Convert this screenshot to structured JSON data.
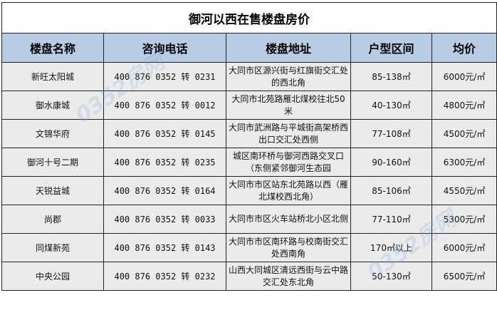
{
  "title": "御河以西在售楼盘房价",
  "headers": [
    "楼盘名称",
    "咨询电话",
    "楼盘地址",
    "户型区间",
    "均价"
  ],
  "rows": [
    {
      "name": "新旺太阳城",
      "phone": "400 876 0352 转 0231",
      "address": "大同市区源兴街与红旗街交汇处的西北角",
      "area": "85-138㎡",
      "price": "6000元/㎡"
    },
    {
      "name": "御水康城",
      "phone": "400 876 0352 转 0012",
      "address": "大同市北苑路雁北煤校往北50米",
      "area": "40-130㎡",
      "price": "4800元/㎡"
    },
    {
      "name": "文锦华府",
      "phone": "400 876 0352 转 0145",
      "address": "大同市武洲路与平城街高架桥西出口交汇处西侧",
      "area": "77-108㎡",
      "price": "4500元/㎡"
    },
    {
      "name": "御河十号二期",
      "phone": "400 876 0352 转 0235",
      "address": "城区南环桥与御河西路交叉口（东侧紧邻御河生态园",
      "area": "90-160㎡",
      "price": "6300元/㎡"
    },
    {
      "name": "天锐益城",
      "phone": "400 876 0352 转 0164",
      "address": "大同市市区站东北苑路以西（雁北煤校西北角）",
      "area": "85-106㎡",
      "price": "4550元/㎡"
    },
    {
      "name": "尚郡",
      "phone": "400 876 0352 转 0033",
      "address": "大同市市区火车站桥北小区北侧",
      "area": "77-110㎡",
      "price": "5300元/㎡"
    },
    {
      "name": "同煤新苑",
      "phone": "400 876 0352 转 0143",
      "address": "大同市市区南环路与校南街交汇处西南角",
      "area": "170㎡以上",
      "price": "6000元/㎡"
    },
    {
      "name": "中央公园",
      "phone": "400 876 0352 转 0232",
      "address": "山西大同城区清远西街与云中路交汇处东北角",
      "area": "50-130㎡",
      "price": "6500元/㎡"
    }
  ],
  "watermark": "0352房网",
  "colors": {
    "header_bg": "#b8cce4",
    "row_bg": "#ebebeb"
  }
}
